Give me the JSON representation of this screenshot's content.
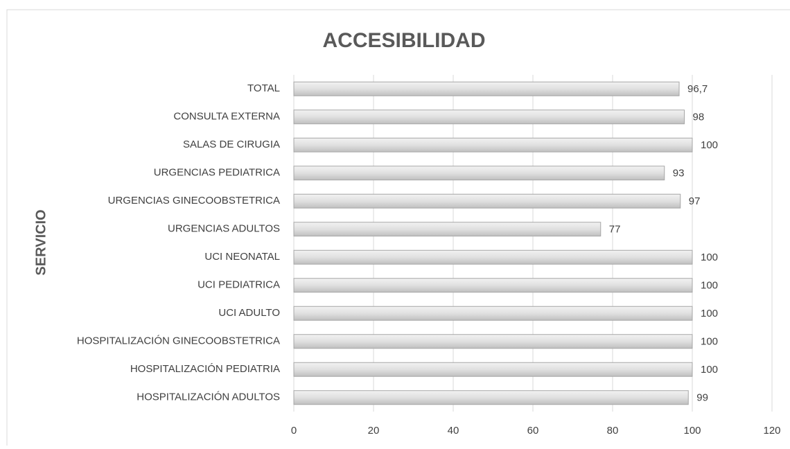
{
  "chart_data": {
    "type": "bar",
    "orientation": "horizontal",
    "title": "ACCESIBILIDAD",
    "ylabel": "SERVICIO",
    "categories": [
      "TOTAL",
      "CONSULTA EXTERNA",
      "SALAS DE CIRUGIA",
      "URGENCIAS PEDIATRICA",
      "URGENCIAS GINECOOBSTETRICA",
      "URGENCIAS ADULTOS",
      "UCI NEONATAL",
      "UCI PEDIATRICA",
      "UCI ADULTO",
      "HOSPITALIZACIÓN GINECOOBSTETRICA",
      "HOSPITALIZACIÓN PEDIATRIA",
      "HOSPITALIZACIÓN ADULTOS"
    ],
    "values": [
      96.7,
      98,
      100,
      93,
      97,
      77,
      100,
      100,
      100,
      100,
      100,
      99
    ],
    "value_labels": [
      "96,7",
      "98",
      "100",
      "93",
      "97",
      "77",
      "100",
      "100",
      "100",
      "100",
      "100",
      "99"
    ],
    "color": "#d9d9d9",
    "xlim": [
      0,
      120
    ],
    "xticks": [
      0,
      20,
      40,
      60,
      80,
      100,
      120
    ],
    "grid": true
  }
}
